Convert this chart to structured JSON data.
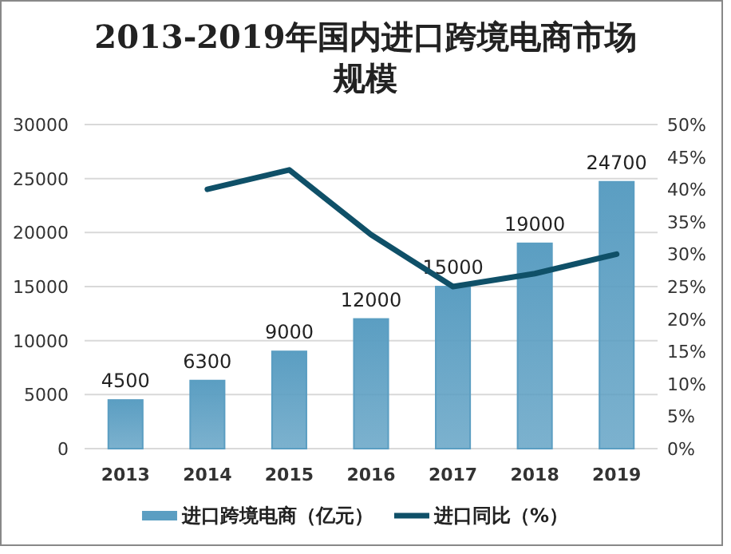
{
  "chart_data": {
    "type": "bar",
    "title": "2013-2019年国内进口跨境电商市场规模",
    "categories": [
      "2013",
      "2014",
      "2015",
      "2016",
      "2017",
      "2018",
      "2019"
    ],
    "series": [
      {
        "name": "进口跨境电商（亿元）",
        "color": "#5b9ec2",
        "values": [
          4500,
          6300,
          9000,
          12000,
          15000,
          19000,
          24700
        ],
        "value_labels": [
          "4500",
          "6300",
          "9000",
          "12000",
          "15000",
          "19000",
          "24700"
        ]
      },
      {
        "name": "进口同比（%）",
        "type": "line",
        "axis": "y2",
        "color": "#0f5068",
        "values": [
          null,
          40,
          43,
          33,
          25,
          27,
          30
        ]
      }
    ],
    "ylim": [
      0,
      30000
    ],
    "yticks": [
      0,
      5000,
      10000,
      15000,
      20000,
      25000,
      30000
    ],
    "y2lim": [
      0,
      50
    ],
    "y2ticks": [
      {
        "value": 0,
        "label": "0%"
      },
      {
        "value": 5,
        "label": "5%"
      },
      {
        "value": 10,
        "label": "10%"
      },
      {
        "value": 15,
        "label": "15%"
      },
      {
        "value": 20,
        "label": "20%"
      },
      {
        "value": 25,
        "label": "25%"
      },
      {
        "value": 30,
        "label": "30%"
      },
      {
        "value": 35,
        "label": "35%"
      },
      {
        "value": 40,
        "label": "40%"
      },
      {
        "value": 45,
        "label": "45%"
      },
      {
        "value": 50,
        "label": "50%"
      }
    ],
    "grid": "y",
    "legend": "bottom"
  }
}
